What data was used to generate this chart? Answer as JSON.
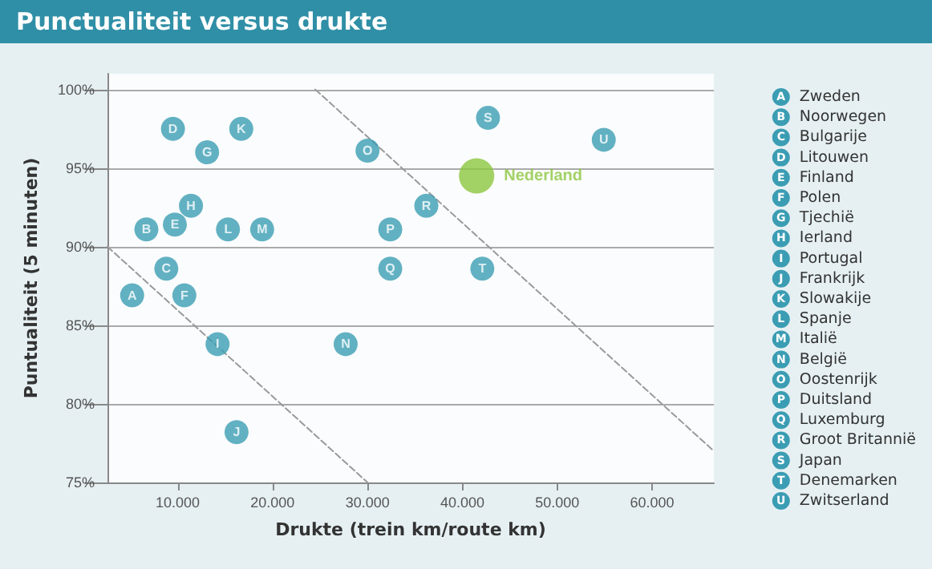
{
  "chart_data": {
    "type": "scatter",
    "title": "Punctualiteit versus drukte",
    "xlabel": "Drukte (trein km/route km)",
    "ylabel": "Puntualiteit (5 minuten)",
    "xlim": [
      2600,
      66500
    ],
    "ylim": [
      75,
      101
    ],
    "xticks": [
      {
        "value": 10000,
        "label": "10.000"
      },
      {
        "value": 20000,
        "label": "20.000"
      },
      {
        "value": 30000,
        "label": "30.000"
      },
      {
        "value": 40000,
        "label": "40.000"
      },
      {
        "value": 50000,
        "label": "50.000"
      },
      {
        "value": 60000,
        "label": "60.000"
      }
    ],
    "yticks": [
      {
        "value": 75,
        "label": "75%"
      },
      {
        "value": 80,
        "label": "80%"
      },
      {
        "value": 85,
        "label": "85%"
      },
      {
        "value": 90,
        "label": "90%"
      },
      {
        "value": 95,
        "label": "95%"
      },
      {
        "value": 100,
        "label": "100%"
      }
    ],
    "grid": "y",
    "legend": "right",
    "marker": "circle",
    "series": [
      {
        "name": "Zweden",
        "color": "#3b9db3",
        "x": [
          5200
        ],
        "values": [
          86.9
        ],
        "value_labels": [
          "A"
        ]
      },
      {
        "name": "Noorwegen",
        "color": "#3b9db3",
        "x": [
          6700
        ],
        "values": [
          91.1
        ],
        "value_labels": [
          "B"
        ]
      },
      {
        "name": "Bulgarije",
        "color": "#3b9db3",
        "x": [
          8800
        ],
        "values": [
          88.6
        ],
        "value_labels": [
          "C"
        ]
      },
      {
        "name": "Litouwen",
        "color": "#3b9db3",
        "x": [
          9500
        ],
        "values": [
          97.5
        ],
        "value_labels": [
          "D"
        ]
      },
      {
        "name": "Finland",
        "color": "#3b9db3",
        "x": [
          9700
        ],
        "values": [
          91.4
        ],
        "value_labels": [
          "E"
        ]
      },
      {
        "name": "Polen",
        "color": "#3b9db3",
        "x": [
          10700
        ],
        "values": [
          86.9
        ],
        "value_labels": [
          "F"
        ]
      },
      {
        "name": "Tjechië",
        "color": "#3b9db3",
        "x": [
          13100
        ],
        "values": [
          96.0
        ],
        "value_labels": [
          "G"
        ]
      },
      {
        "name": "Ierland",
        "color": "#3b9db3",
        "x": [
          11400
        ],
        "values": [
          92.6
        ],
        "value_labels": [
          "H"
        ]
      },
      {
        "name": "Portugal",
        "color": "#3b9db3",
        "x": [
          14200
        ],
        "values": [
          83.8
        ],
        "value_labels": [
          "I"
        ]
      },
      {
        "name": "Frankrijk",
        "color": "#3b9db3",
        "x": [
          16200
        ],
        "values": [
          78.2
        ],
        "value_labels": [
          "J"
        ]
      },
      {
        "name": "Slowakije",
        "color": "#3b9db3",
        "x": [
          16700
        ],
        "values": [
          97.5
        ],
        "value_labels": [
          "K"
        ]
      },
      {
        "name": "Spanje",
        "color": "#3b9db3",
        "x": [
          15300
        ],
        "values": [
          91.1
        ],
        "value_labels": [
          "L"
        ]
      },
      {
        "name": "Italië",
        "color": "#3b9db3",
        "x": [
          18900
        ],
        "values": [
          91.1
        ],
        "value_labels": [
          "M"
        ]
      },
      {
        "name": "België",
        "color": "#3b9db3",
        "x": [
          27700
        ],
        "values": [
          83.8
        ],
        "value_labels": [
          "N"
        ]
      },
      {
        "name": "Oostenrijk",
        "color": "#3b9db3",
        "x": [
          30000
        ],
        "values": [
          96.1
        ],
        "value_labels": [
          "O"
        ]
      },
      {
        "name": "Duitsland",
        "color": "#3b9db3",
        "x": [
          32400
        ],
        "values": [
          91.1
        ],
        "value_labels": [
          "P"
        ]
      },
      {
        "name": "Luxemburg",
        "color": "#3b9db3",
        "x": [
          32400
        ],
        "values": [
          88.6
        ],
        "value_labels": [
          "Q"
        ]
      },
      {
        "name": "Groot Britannië",
        "color": "#3b9db3",
        "x": [
          36200
        ],
        "values": [
          92.6
        ],
        "value_labels": [
          "R"
        ]
      },
      {
        "name": "Japan",
        "color": "#3b9db3",
        "x": [
          42700
        ],
        "values": [
          98.2
        ],
        "value_labels": [
          "S"
        ]
      },
      {
        "name": "Denemarken",
        "color": "#3b9db3",
        "x": [
          42100
        ],
        "values": [
          88.6
        ],
        "value_labels": [
          "T"
        ]
      },
      {
        "name": "Zwitserland",
        "color": "#3b9db3",
        "x": [
          54900
        ],
        "values": [
          96.8
        ],
        "value_labels": [
          "U"
        ]
      },
      {
        "name": "Nederland",
        "color": "#8cc63f",
        "x": [
          41500
        ],
        "values": [
          94.5
        ]
      },
      {
        "type": "line",
        "color": "#9a9a9a",
        "line_style": "dashed",
        "marker": "none",
        "x": [
          2600,
          30000
        ],
        "values": [
          90,
          75
        ]
      },
      {
        "type": "line",
        "color": "#9a9a9a",
        "line_style": "dashed",
        "marker": "none",
        "x": [
          24500,
          66500
        ],
        "values": [
          100,
          77
        ]
      }
    ]
  }
}
